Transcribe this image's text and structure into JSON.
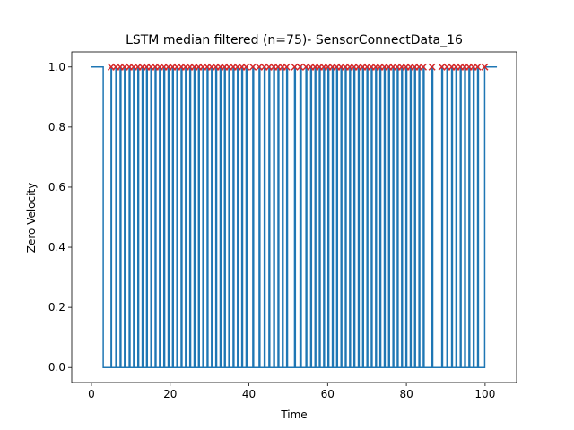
{
  "chart_data": {
    "type": "line",
    "title": "LSTM median filtered (n=75)- SensorConnectData_16",
    "xlabel": "Time",
    "ylabel": "Zero Velocity",
    "xlim": [
      -5,
      108
    ],
    "ylim": [
      -0.05,
      1.05
    ],
    "x_ticks": [
      0,
      20,
      40,
      60,
      80,
      100
    ],
    "x_tick_labels": [
      "0",
      "20",
      "40",
      "60",
      "80",
      "100"
    ],
    "y_ticks": [
      0.0,
      0.2,
      0.4,
      0.6,
      0.8,
      1.0
    ],
    "y_tick_labels": [
      "0.0",
      "0.2",
      "0.4",
      "0.6",
      "0.8",
      "1.0"
    ],
    "grid": false,
    "colors": {
      "line": "#1f77b4",
      "marker": "#d62728",
      "axes": "#000000",
      "background": "#ffffff"
    },
    "series": [
      {
        "kind": "step",
        "start_x": 0,
        "end_x": 103,
        "high_value": 1,
        "low_value": 0,
        "low_intervals": [
          [
            3.0,
            5.0
          ],
          [
            5.1,
            6.2
          ],
          [
            6.4,
            7.3
          ],
          [
            7.5,
            8.4
          ],
          [
            8.6,
            9.6
          ],
          [
            9.8,
            10.7
          ],
          [
            10.9,
            11.8
          ],
          [
            12.0,
            12.9
          ],
          [
            13.1,
            14.0
          ],
          [
            14.2,
            15.1
          ],
          [
            15.3,
            16.2
          ],
          [
            16.4,
            17.3
          ],
          [
            17.5,
            18.4
          ],
          [
            18.6,
            19.5
          ],
          [
            19.7,
            20.6
          ],
          [
            20.8,
            21.7
          ],
          [
            21.9,
            22.8
          ],
          [
            23.0,
            23.9
          ],
          [
            24.1,
            25.0
          ],
          [
            25.2,
            26.1
          ],
          [
            26.3,
            27.2
          ],
          [
            27.4,
            28.3
          ],
          [
            28.5,
            29.4
          ],
          [
            29.6,
            30.5
          ],
          [
            30.7,
            31.6
          ],
          [
            31.8,
            32.7
          ],
          [
            32.9,
            33.8
          ],
          [
            34.0,
            34.9
          ],
          [
            35.1,
            36.0
          ],
          [
            36.2,
            37.1
          ],
          [
            37.3,
            38.2
          ],
          [
            38.4,
            39.3
          ],
          [
            39.5,
            41.0
          ],
          [
            41.2,
            42.6
          ],
          [
            42.8,
            43.9
          ],
          [
            44.1,
            45.1
          ],
          [
            45.3,
            46.3
          ],
          [
            46.5,
            47.4
          ],
          [
            47.6,
            48.5
          ],
          [
            48.7,
            49.6
          ],
          [
            49.8,
            51.6
          ],
          [
            51.8,
            53.0
          ],
          [
            53.3,
            54.5
          ],
          [
            54.7,
            55.7
          ],
          [
            55.9,
            56.8
          ],
          [
            57.0,
            57.9
          ],
          [
            58.1,
            59.0
          ],
          [
            59.2,
            60.1
          ],
          [
            60.3,
            61.2
          ],
          [
            61.4,
            62.3
          ],
          [
            62.5,
            63.4
          ],
          [
            63.6,
            64.5
          ],
          [
            64.7,
            65.6
          ],
          [
            65.8,
            66.7
          ],
          [
            66.9,
            67.8
          ],
          [
            68.0,
            68.9
          ],
          [
            69.1,
            70.0
          ],
          [
            70.2,
            71.1
          ],
          [
            71.3,
            72.2
          ],
          [
            72.4,
            73.3
          ],
          [
            73.5,
            74.4
          ],
          [
            74.6,
            75.5
          ],
          [
            75.7,
            76.6
          ],
          [
            76.8,
            77.7
          ],
          [
            77.9,
            78.8
          ],
          [
            79.0,
            79.9
          ],
          [
            80.1,
            81.0
          ],
          [
            81.2,
            82.1
          ],
          [
            82.3,
            83.2
          ],
          [
            83.4,
            84.3
          ],
          [
            84.5,
            86.5
          ],
          [
            86.7,
            89.0
          ],
          [
            89.2,
            90.3
          ],
          [
            90.5,
            91.5
          ],
          [
            91.7,
            92.6
          ],
          [
            92.8,
            93.7
          ],
          [
            93.9,
            94.8
          ],
          [
            95.0,
            95.9
          ],
          [
            96.1,
            97.0
          ],
          [
            97.2,
            98.1
          ],
          [
            98.3,
            99.9
          ]
        ]
      },
      {
        "kind": "markers",
        "marker": "x",
        "y": 1,
        "x": [
          5.0,
          6.2,
          7.3,
          8.4,
          9.6,
          10.7,
          11.8,
          12.9,
          14.0,
          15.1,
          16.2,
          17.3,
          18.4,
          19.5,
          20.6,
          21.7,
          22.8,
          23.9,
          25.0,
          26.1,
          27.2,
          28.3,
          29.4,
          30.5,
          31.6,
          32.7,
          33.8,
          34.9,
          36.0,
          37.1,
          38.2,
          39.3,
          41.0,
          42.6,
          43.9,
          45.1,
          46.3,
          47.4,
          48.5,
          49.6,
          51.6,
          53.0,
          54.5,
          55.7,
          56.8,
          57.9,
          59.0,
          60.1,
          61.2,
          62.3,
          63.4,
          64.5,
          65.6,
          66.7,
          67.8,
          68.9,
          70.0,
          71.1,
          72.2,
          73.3,
          74.4,
          75.5,
          76.6,
          77.7,
          78.8,
          79.9,
          81.0,
          82.1,
          83.2,
          84.3,
          86.5,
          89.0,
          90.3,
          91.5,
          92.6,
          93.7,
          94.8,
          95.9,
          97.0,
          98.1,
          99.9
        ]
      }
    ]
  }
}
